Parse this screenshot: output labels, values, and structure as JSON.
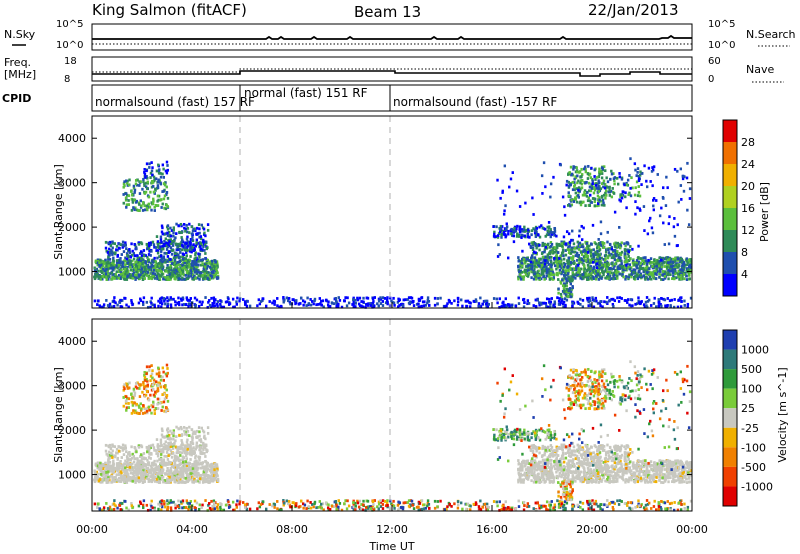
{
  "header": {
    "title": "King Salmon (fitACF)",
    "beam": "Beam 13",
    "date": "22/Jan/2013"
  },
  "top_panels": {
    "nsky_label": "N.Sky",
    "nsearch_label": "N.Search",
    "freq_label": "Freq.",
    "freq_unit": "[MHz]",
    "nave_label": "Nave",
    "cpid_label": "CPID",
    "left_ticks_noise": [
      "10^5",
      "10^0"
    ],
    "right_ticks_noise": [
      "10^5",
      "10^0"
    ],
    "left_ticks_freq": [
      "18",
      "8"
    ],
    "right_ticks_nave": [
      "60",
      "0"
    ]
  },
  "modes": [
    {
      "label": "normalsound (fast) 157 RF",
      "start_h": 0,
      "end_h": 6
    },
    {
      "label": "normal (fast) 151 RF",
      "start_h": 6,
      "end_h": 12
    },
    {
      "label": "normalsound (fast) -157 RF",
      "start_h": 12,
      "end_h": 24
    }
  ],
  "chart_data": [
    {
      "type": "heatmap",
      "name": "power-panel",
      "ylabel": "Slant Range [km]",
      "xlim": [
        0,
        24
      ],
      "ylim": [
        180,
        4500
      ],
      "yticks": [
        "1000",
        "2000",
        "3000",
        "4000"
      ],
      "colorbar": {
        "label": "Power [dB]",
        "ticks": [
          "4",
          "8",
          "12",
          "16",
          "20",
          "24",
          "28"
        ],
        "colors": [
          "#0000ff",
          "#1f4fae",
          "#2e8a57",
          "#5bbf3c",
          "#b0d020",
          "#f0b000",
          "#f07000",
          "#e00000"
        ]
      }
    },
    {
      "type": "heatmap",
      "name": "velocity-panel",
      "ylabel": "Slant Range [km]",
      "xlabel": "Time UT",
      "xlim": [
        0,
        24
      ],
      "ylim": [
        180,
        4500
      ],
      "yticks": [
        "1000",
        "2000",
        "3000",
        "4000"
      ],
      "xticks": [
        "00:00",
        "04:00",
        "08:00",
        "12:00",
        "16:00",
        "20:00",
        "00:00"
      ],
      "colorbar": {
        "label": "Velocity [m s^-1]",
        "ticks": [
          "1000",
          "500",
          "100",
          "25",
          "-25",
          "-100",
          "-500",
          "-1000"
        ],
        "colors": [
          "#1f3fb0",
          "#2e7a7a",
          "#2e9a3a",
          "#7acc3a",
          "#c8c8c0",
          "#f0b000",
          "#f08000",
          "#f04000",
          "#e00000"
        ]
      }
    }
  ],
  "colors": {
    "axis": "#000000",
    "dashed_line": "#b0b0b0",
    "ground_scatter": "#c8c8c0"
  }
}
